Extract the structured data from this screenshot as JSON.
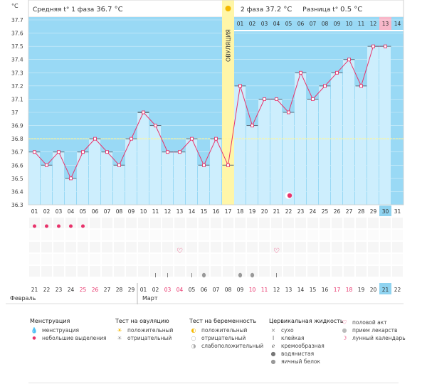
{
  "header": {
    "phase1_label": "Средняя t° 1 фаза",
    "phase1_value": "36.7 °C",
    "phase2_label": "2 фаза",
    "phase2_value": "37.2 °C",
    "diff_label": "Разница t°",
    "diff_value": "0.5 °C",
    "unit": "°C",
    "ovulation_label": "ОВУЛЯЦИЯ"
  },
  "phase2_days": [
    "01",
    "02",
    "03",
    "04",
    "05",
    "06",
    "07",
    "08",
    "09",
    "10",
    "11",
    "12",
    "13",
    "14"
  ],
  "phase2_highlight": "13",
  "chart_data": {
    "type": "line",
    "ylabel": "°C",
    "ylim": [
      36.3,
      37.7
    ],
    "yticks": [
      37.7,
      37.6,
      37.5,
      37.4,
      37.3,
      37.2,
      37.1,
      37,
      36.9,
      36.8,
      36.7,
      36.6,
      36.5,
      36.4,
      36.3
    ],
    "cover_line": 36.8,
    "ovulation_day": 17,
    "cycle_days": [
      "01",
      "02",
      "03",
      "04",
      "05",
      "06",
      "07",
      "08",
      "09",
      "10",
      "11",
      "12",
      "13",
      "14",
      "15",
      "16",
      "17",
      "18",
      "19",
      "20",
      "21",
      "22",
      "23",
      "24",
      "25",
      "26",
      "27",
      "28",
      "29",
      "30",
      "31"
    ],
    "series": [
      {
        "x": [
          1,
          2,
          3,
          4,
          5,
          6,
          7,
          8,
          9,
          10,
          11,
          12,
          13,
          14,
          15,
          16,
          17,
          18,
          19,
          20,
          21,
          22,
          23,
          24,
          25,
          26,
          27,
          28,
          29,
          30
        ],
        "values": [
          36.7,
          36.6,
          36.7,
          36.5,
          36.7,
          36.8,
          36.7,
          36.6,
          36.8,
          37.0,
          36.9,
          36.7,
          36.7,
          36.8,
          36.6,
          36.8,
          36.6,
          37.2,
          36.9,
          37.1,
          37.1,
          37.0,
          37.3,
          37.1,
          37.2,
          37.3,
          37.4,
          37.2,
          37.5,
          37.5
        ]
      }
    ],
    "highlight_day": "30"
  },
  "calendar": {
    "dates": [
      "21",
      "22",
      "23",
      "24",
      "25",
      "26",
      "27",
      "28",
      "29",
      "01",
      "02",
      "03",
      "04",
      "05",
      "06",
      "07",
      "08",
      "09",
      "10",
      "11",
      "12",
      "13",
      "14",
      "15",
      "16",
      "17",
      "18",
      "19",
      "20",
      "21",
      "22"
    ],
    "red_dates_index": [
      4,
      5,
      11,
      12,
      18,
      19,
      25,
      26
    ],
    "today_index": 29,
    "month_feb": "Февраль",
    "month_mar": "Март"
  },
  "legend": {
    "menstruation": {
      "title": "Менструация",
      "items": [
        {
          "icon": "blood-drop-icon",
          "label": "менструация"
        },
        {
          "icon": "small-drop-icon",
          "label": "небольшие выделения"
        }
      ]
    },
    "ovulation_test": {
      "title": "Тест на овуляцию",
      "items": [
        {
          "icon": "sun-icon",
          "label": "положительный"
        },
        {
          "icon": "grey-sun-icon",
          "label": "отрицательный"
        }
      ]
    },
    "pregnancy_test": {
      "title": "Тест на беременность",
      "items": [
        {
          "icon": "positive-test-icon",
          "label": "положительный"
        },
        {
          "icon": "negative-test-icon",
          "label": "отрицательный"
        },
        {
          "icon": "weak-test-icon",
          "label": "слабоположительный"
        }
      ]
    },
    "cervical": {
      "title": "Цервикальная жидкость",
      "items": [
        {
          "icon": "cross-icon",
          "label": "сухо"
        },
        {
          "icon": "sticky-icon",
          "label": "клейкая"
        },
        {
          "icon": "creamy-icon",
          "label": "кремообразная"
        },
        {
          "icon": "watery-icon",
          "label": "водянистая"
        },
        {
          "icon": "egg-white-icon",
          "label": "яичный белок"
        }
      ]
    },
    "other": {
      "items": [
        {
          "icon": "heart-icon",
          "label": "половой акт"
        },
        {
          "icon": "pill-icon",
          "label": "прием лекарств"
        },
        {
          "icon": "moon-icon",
          "label": "лунный календарь"
        }
      ]
    }
  },
  "colors": {
    "phase_bg": "#99d9f5",
    "bar": "#cdeefd",
    "line": "#e8336b",
    "cover": "#fff59a",
    "ovulation": "#fff6a8",
    "highlight": "#8fd3f0",
    "pink_cell": "#f8b7c9"
  }
}
